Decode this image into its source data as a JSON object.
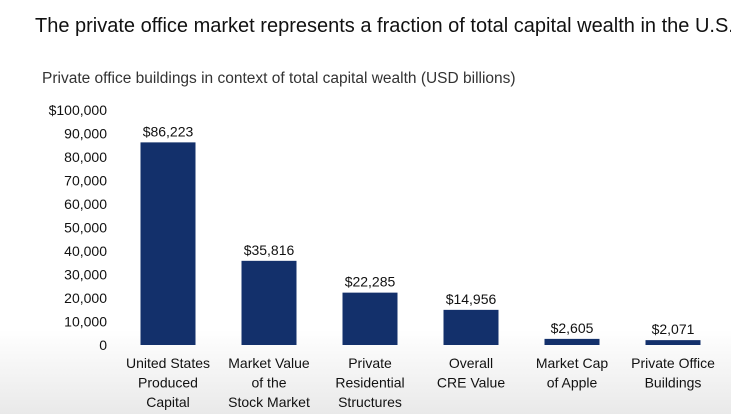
{
  "header": {
    "title": "The private office market represents a fraction of total capital wealth in the U.S."
  },
  "chart_data": {
    "type": "bar",
    "title": "Private office buildings in context of total capital wealth (USD billions)",
    "xlabel": "",
    "ylabel": "",
    "ylim": [
      0,
      100000
    ],
    "grid": false,
    "legend": "none",
    "bar_color": "#13306b",
    "yticks": [
      "0",
      "10,000",
      "20,000",
      "30,000",
      "40,000",
      "50,000",
      "60,000",
      "70,000",
      "80,000",
      "90,000",
      "$100,000"
    ],
    "ytick_values": [
      0,
      10000,
      20000,
      30000,
      40000,
      50000,
      60000,
      70000,
      80000,
      90000,
      100000
    ],
    "categories": [
      [
        "United States",
        "Produced",
        "Capital"
      ],
      [
        "Market Value",
        "of the",
        "Stock Market"
      ],
      [
        "Private",
        "Residential",
        "Structures"
      ],
      [
        "Overall",
        "CRE Value"
      ],
      [
        "Market Cap",
        "of Apple"
      ],
      [
        "Private Office",
        "Buildings"
      ]
    ],
    "values": [
      86223,
      35816,
      22285,
      14956,
      2605,
      2071
    ],
    "data_labels": [
      "$86,223",
      "$35,816",
      "$22,285",
      "$14,956",
      "$2,605",
      "$2,071"
    ]
  }
}
